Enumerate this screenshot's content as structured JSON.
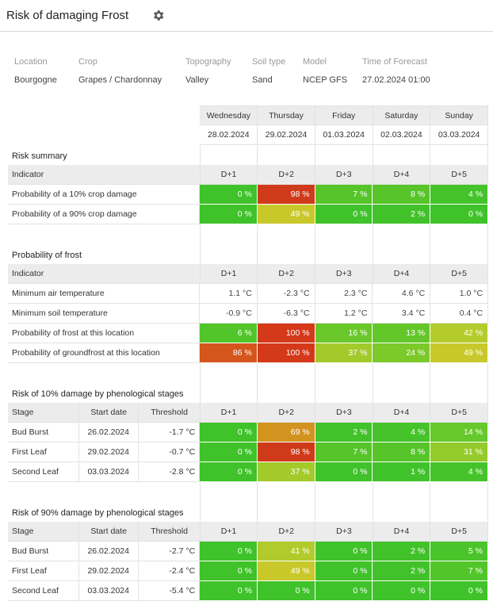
{
  "header": {
    "title": "Risk of damaging Frost"
  },
  "meta": [
    {
      "label": "Location",
      "value": "Bourgogne"
    },
    {
      "label": "Crop",
      "value": "Grapes / Chardonnay"
    },
    {
      "label": "Topography",
      "value": "Valley"
    },
    {
      "label": "Soil type",
      "value": "Sand"
    },
    {
      "label": "Model",
      "value": "NCEP GFS"
    },
    {
      "label": "Time of Forecast",
      "value": "27.02.2024 01:00"
    }
  ],
  "days": [
    {
      "name": "Wednesday",
      "date": "28.02.2024",
      "d": "D+1"
    },
    {
      "name": "Thursday",
      "date": "29.02.2024",
      "d": "D+2"
    },
    {
      "name": "Friday",
      "date": "01.03.2024",
      "d": "D+3"
    },
    {
      "name": "Saturday",
      "date": "02.03.2024",
      "d": "D+4"
    },
    {
      "name": "Sunday",
      "date": "03.03.2024",
      "d": "D+5"
    }
  ],
  "risk_summary": {
    "title": "Risk summary",
    "indicator_label": "Indicator",
    "rows": [
      {
        "label": "Probability of a 10% crop damage",
        "values": [
          "0 %",
          "98 %",
          "7 %",
          "8 %",
          "4 %"
        ],
        "colors": [
          "#3fc22a",
          "#cf3b1a",
          "#56c52a",
          "#57c52a",
          "#45c32a"
        ]
      },
      {
        "label": "Probability of a 90% crop damage",
        "values": [
          "0 %",
          "49 %",
          "0 %",
          "2 %",
          "0 %"
        ],
        "colors": [
          "#3fc22a",
          "#c8c82b",
          "#3fc22a",
          "#42c22a",
          "#3fc22a"
        ]
      }
    ]
  },
  "frost": {
    "title": "Probability of frost",
    "indicator_label": "Indicator",
    "rows": [
      {
        "label": "Minimum air temperature",
        "values": [
          "1.1 °C",
          "-2.3 °C",
          "2.3 °C",
          "4.6 °C",
          "1.0 °C"
        ],
        "colors": null
      },
      {
        "label": "Minimum soil temperature",
        "values": [
          "-0.9 °C",
          "-6.3 °C",
          "1.2 °C",
          "3.4 °C",
          "0.4 °C"
        ],
        "colors": null
      },
      {
        "label": "Probability of frost at this location",
        "values": [
          "6 %",
          "100 %",
          "16 %",
          "13 %",
          "42 %"
        ],
        "colors": [
          "#52c52a",
          "#d4391a",
          "#6ac82a",
          "#63c72a",
          "#b4cc2b"
        ]
      },
      {
        "label": "Probability of groundfrost at this location",
        "values": [
          "86 %",
          "100 %",
          "37 %",
          "24 %",
          "49 %"
        ],
        "colors": [
          "#d4561d",
          "#d4391a",
          "#a3ca2b",
          "#7bc92a",
          "#c8c82b"
        ]
      }
    ]
  },
  "stages10": {
    "title": "Risk of 10% damage by phenological stages",
    "headers": [
      "Stage",
      "Start date",
      "Threshold"
    ],
    "rows": [
      {
        "stage": "Bud Burst",
        "start": "26.02.2024",
        "threshold": "-1.7 °C",
        "values": [
          "0 %",
          "69 %",
          "2 %",
          "4 %",
          "14 %"
        ],
        "colors": [
          "#3fc22a",
          "#d2931f",
          "#42c22a",
          "#45c32a",
          "#66c82a"
        ]
      },
      {
        "stage": "First Leaf",
        "start": "29.02.2024",
        "threshold": "-0.7 °C",
        "values": [
          "0 %",
          "98 %",
          "7 %",
          "8 %",
          "31 %"
        ],
        "colors": [
          "#3fc22a",
          "#cf3b1a",
          "#56c52a",
          "#57c52a",
          "#95ca2b"
        ]
      },
      {
        "stage": "Second Leaf",
        "start": "03.03.2024",
        "threshold": "-2.8 °C",
        "values": [
          "0 %",
          "37 %",
          "0 %",
          "1 %",
          "4 %"
        ],
        "colors": [
          "#3fc22a",
          "#a3ca2b",
          "#3fc22a",
          "#40c22a",
          "#45c32a"
        ]
      }
    ]
  },
  "stages90": {
    "title": "Risk of 90% damage by phenological stages",
    "headers": [
      "Stage",
      "Start date",
      "Threshold"
    ],
    "rows": [
      {
        "stage": "Bud Burst",
        "start": "26.02.2024",
        "threshold": "-2.7 °C",
        "values": [
          "0 %",
          "41 %",
          "0 %",
          "2 %",
          "5 %"
        ],
        "colors": [
          "#3fc22a",
          "#b0cb2b",
          "#3fc22a",
          "#42c22a",
          "#4ac42a"
        ]
      },
      {
        "stage": "First Leaf",
        "start": "29.02.2024",
        "threshold": "-2.4 °C",
        "values": [
          "0 %",
          "49 %",
          "0 %",
          "2 %",
          "7 %"
        ],
        "colors": [
          "#3fc22a",
          "#c8c82b",
          "#3fc22a",
          "#42c22a",
          "#52c52a"
        ]
      },
      {
        "stage": "Second Leaf",
        "start": "03.03.2024",
        "threshold": "-5.4 °C",
        "values": [
          "0 %",
          "0 %",
          "0 %",
          "0 %",
          "0 %"
        ],
        "colors": [
          "#3fc22a",
          "#3fc22a",
          "#3fc22a",
          "#3fc22a",
          "#3fc22a"
        ]
      }
    ]
  }
}
